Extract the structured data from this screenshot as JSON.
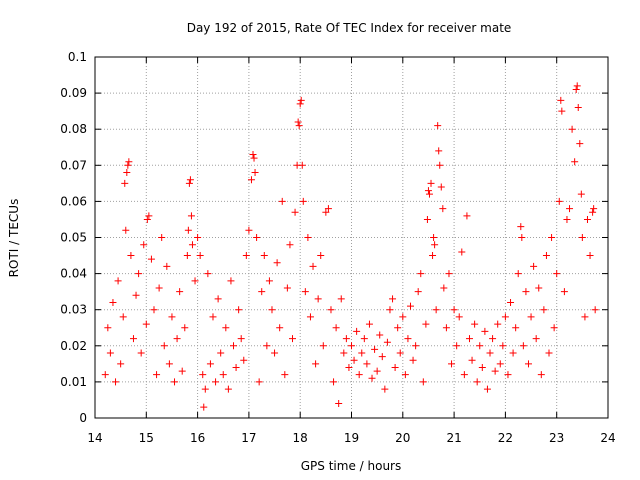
{
  "chart_data": {
    "type": "scatter",
    "title": "Day 192 of 2015, Rate Of TEC Index for receiver mate",
    "xlabel": "GPS time / hours",
    "ylabel": "ROTI / TECUs",
    "xlim": [
      14,
      24
    ],
    "ylim": [
      0,
      0.1
    ],
    "xticks": [
      14,
      15,
      16,
      17,
      18,
      19,
      20,
      21,
      22,
      23,
      24
    ],
    "yticks": [
      0,
      0.01,
      0.02,
      0.03,
      0.04,
      0.05,
      0.06,
      0.07,
      0.08,
      0.09,
      0.1
    ],
    "xtick_labels": [
      "14",
      "15",
      "16",
      "17",
      "18",
      "19",
      "20",
      "21",
      "22",
      "23",
      "24"
    ],
    "ytick_labels": [
      "0",
      "0.01",
      "0.02",
      "0.03",
      "0.04",
      "0.05",
      "0.06",
      "0.07",
      "0.08",
      "0.09",
      "0.1"
    ],
    "grid": true,
    "marker": "+",
    "color": "#ff0000",
    "series": [
      {
        "name": "ROTI",
        "points": [
          [
            14.2,
            0.012
          ],
          [
            14.25,
            0.025
          ],
          [
            14.3,
            0.018
          ],
          [
            14.35,
            0.032
          ],
          [
            14.4,
            0.01
          ],
          [
            14.45,
            0.038
          ],
          [
            14.5,
            0.015
          ],
          [
            14.55,
            0.028
          ],
          [
            14.58,
            0.065
          ],
          [
            14.62,
            0.068
          ],
          [
            14.64,
            0.07
          ],
          [
            14.66,
            0.071
          ],
          [
            14.6,
            0.052
          ],
          [
            14.7,
            0.045
          ],
          [
            14.75,
            0.022
          ],
          [
            14.8,
            0.034
          ],
          [
            14.85,
            0.04
          ],
          [
            14.9,
            0.018
          ],
          [
            14.95,
            0.048
          ],
          [
            15.0,
            0.026
          ],
          [
            15.02,
            0.055
          ],
          [
            15.05,
            0.056
          ],
          [
            15.1,
            0.044
          ],
          [
            15.15,
            0.03
          ],
          [
            15.2,
            0.012
          ],
          [
            15.25,
            0.036
          ],
          [
            15.3,
            0.05
          ],
          [
            15.35,
            0.02
          ],
          [
            15.4,
            0.042
          ],
          [
            15.45,
            0.015
          ],
          [
            15.5,
            0.028
          ],
          [
            15.55,
            0.01
          ],
          [
            15.6,
            0.022
          ],
          [
            15.65,
            0.035
          ],
          [
            15.7,
            0.013
          ],
          [
            15.75,
            0.025
          ],
          [
            15.8,
            0.045
          ],
          [
            15.82,
            0.052
          ],
          [
            15.84,
            0.065
          ],
          [
            15.86,
            0.066
          ],
          [
            15.88,
            0.056
          ],
          [
            15.9,
            0.048
          ],
          [
            15.95,
            0.038
          ],
          [
            16.0,
            0.05
          ],
          [
            16.05,
            0.045
          ],
          [
            16.1,
            0.012
          ],
          [
            16.12,
            0.003
          ],
          [
            16.15,
            0.008
          ],
          [
            16.2,
            0.04
          ],
          [
            16.25,
            0.015
          ],
          [
            16.3,
            0.028
          ],
          [
            16.35,
            0.01
          ],
          [
            16.4,
            0.033
          ],
          [
            16.45,
            0.018
          ],
          [
            16.5,
            0.012
          ],
          [
            16.55,
            0.025
          ],
          [
            16.6,
            0.008
          ],
          [
            16.65,
            0.038
          ],
          [
            16.7,
            0.02
          ],
          [
            16.75,
            0.014
          ],
          [
            16.8,
            0.03
          ],
          [
            16.85,
            0.022
          ],
          [
            16.9,
            0.016
          ],
          [
            16.95,
            0.045
          ],
          [
            17.0,
            0.052
          ],
          [
            17.05,
            0.066
          ],
          [
            17.08,
            0.073
          ],
          [
            17.1,
            0.072
          ],
          [
            17.12,
            0.068
          ],
          [
            17.15,
            0.05
          ],
          [
            17.2,
            0.01
          ],
          [
            17.25,
            0.035
          ],
          [
            17.3,
            0.045
          ],
          [
            17.35,
            0.02
          ],
          [
            17.4,
            0.038
          ],
          [
            17.45,
            0.03
          ],
          [
            17.5,
            0.018
          ],
          [
            17.55,
            0.043
          ],
          [
            17.6,
            0.025
          ],
          [
            17.65,
            0.06
          ],
          [
            17.7,
            0.012
          ],
          [
            17.75,
            0.036
          ],
          [
            17.8,
            0.048
          ],
          [
            17.85,
            0.022
          ],
          [
            17.9,
            0.057
          ],
          [
            17.94,
            0.07
          ],
          [
            17.96,
            0.082
          ],
          [
            17.98,
            0.081
          ],
          [
            18.0,
            0.087
          ],
          [
            18.02,
            0.088
          ],
          [
            18.04,
            0.07
          ],
          [
            18.06,
            0.06
          ],
          [
            18.1,
            0.035
          ],
          [
            18.15,
            0.05
          ],
          [
            18.2,
            0.028
          ],
          [
            18.25,
            0.042
          ],
          [
            18.3,
            0.015
          ],
          [
            18.35,
            0.033
          ],
          [
            18.4,
            0.045
          ],
          [
            18.45,
            0.02
          ],
          [
            18.5,
            0.057
          ],
          [
            18.55,
            0.058
          ],
          [
            18.6,
            0.03
          ],
          [
            18.65,
            0.01
          ],
          [
            18.7,
            0.025
          ],
          [
            18.75,
            0.004
          ],
          [
            18.8,
            0.033
          ],
          [
            18.85,
            0.018
          ],
          [
            18.9,
            0.022
          ],
          [
            18.95,
            0.014
          ],
          [
            19.0,
            0.02
          ],
          [
            19.05,
            0.016
          ],
          [
            19.1,
            0.024
          ],
          [
            19.15,
            0.012
          ],
          [
            19.2,
            0.018
          ],
          [
            19.25,
            0.022
          ],
          [
            19.3,
            0.015
          ],
          [
            19.35,
            0.026
          ],
          [
            19.4,
            0.011
          ],
          [
            19.45,
            0.019
          ],
          [
            19.5,
            0.013
          ],
          [
            19.55,
            0.023
          ],
          [
            19.6,
            0.017
          ],
          [
            19.65,
            0.008
          ],
          [
            19.7,
            0.021
          ],
          [
            19.75,
            0.03
          ],
          [
            19.8,
            0.033
          ],
          [
            19.85,
            0.014
          ],
          [
            19.9,
            0.025
          ],
          [
            19.95,
            0.018
          ],
          [
            20.0,
            0.028
          ],
          [
            20.05,
            0.012
          ],
          [
            20.1,
            0.022
          ],
          [
            20.15,
            0.031
          ],
          [
            20.2,
            0.016
          ],
          [
            20.25,
            0.02
          ],
          [
            20.3,
            0.035
          ],
          [
            20.35,
            0.04
          ],
          [
            20.4,
            0.01
          ],
          [
            20.45,
            0.026
          ],
          [
            20.48,
            0.055
          ],
          [
            20.5,
            0.063
          ],
          [
            20.52,
            0.062
          ],
          [
            20.55,
            0.065
          ],
          [
            20.58,
            0.045
          ],
          [
            20.6,
            0.05
          ],
          [
            20.62,
            0.048
          ],
          [
            20.65,
            0.03
          ],
          [
            20.68,
            0.081
          ],
          [
            20.7,
            0.074
          ],
          [
            20.72,
            0.07
          ],
          [
            20.75,
            0.064
          ],
          [
            20.78,
            0.058
          ],
          [
            20.8,
            0.036
          ],
          [
            20.85,
            0.025
          ],
          [
            20.9,
            0.04
          ],
          [
            20.95,
            0.015
          ],
          [
            21.0,
            0.03
          ],
          [
            21.05,
            0.02
          ],
          [
            21.1,
            0.028
          ],
          [
            21.15,
            0.046
          ],
          [
            21.2,
            0.012
          ],
          [
            21.25,
            0.056
          ],
          [
            21.3,
            0.022
          ],
          [
            21.35,
            0.016
          ],
          [
            21.4,
            0.026
          ],
          [
            21.45,
            0.01
          ],
          [
            21.5,
            0.02
          ],
          [
            21.55,
            0.014
          ],
          [
            21.6,
            0.024
          ],
          [
            21.65,
            0.008
          ],
          [
            21.7,
            0.018
          ],
          [
            21.75,
            0.022
          ],
          [
            21.8,
            0.013
          ],
          [
            21.85,
            0.026
          ],
          [
            21.9,
            0.015
          ],
          [
            21.95,
            0.02
          ],
          [
            22.0,
            0.028
          ],
          [
            22.05,
            0.012
          ],
          [
            22.1,
            0.032
          ],
          [
            22.15,
            0.018
          ],
          [
            22.2,
            0.025
          ],
          [
            22.25,
            0.04
          ],
          [
            22.3,
            0.053
          ],
          [
            22.32,
            0.05
          ],
          [
            22.35,
            0.02
          ],
          [
            22.4,
            0.035
          ],
          [
            22.45,
            0.015
          ],
          [
            22.5,
            0.028
          ],
          [
            22.55,
            0.042
          ],
          [
            22.6,
            0.022
          ],
          [
            22.65,
            0.036
          ],
          [
            22.7,
            0.012
          ],
          [
            22.75,
            0.03
          ],
          [
            22.8,
            0.045
          ],
          [
            22.85,
            0.018
          ],
          [
            22.9,
            0.05
          ],
          [
            22.95,
            0.025
          ],
          [
            23.0,
            0.04
          ],
          [
            23.05,
            0.06
          ],
          [
            23.08,
            0.088
          ],
          [
            23.1,
            0.085
          ],
          [
            23.15,
            0.035
          ],
          [
            23.2,
            0.055
          ],
          [
            23.25,
            0.058
          ],
          [
            23.3,
            0.08
          ],
          [
            23.35,
            0.071
          ],
          [
            23.38,
            0.091
          ],
          [
            23.4,
            0.092
          ],
          [
            23.42,
            0.086
          ],
          [
            23.45,
            0.076
          ],
          [
            23.48,
            0.062
          ],
          [
            23.5,
            0.05
          ],
          [
            23.55,
            0.028
          ],
          [
            23.6,
            0.055
          ],
          [
            23.65,
            0.045
          ],
          [
            23.7,
            0.057
          ],
          [
            23.72,
            0.058
          ],
          [
            23.75,
            0.03
          ]
        ]
      }
    ]
  }
}
